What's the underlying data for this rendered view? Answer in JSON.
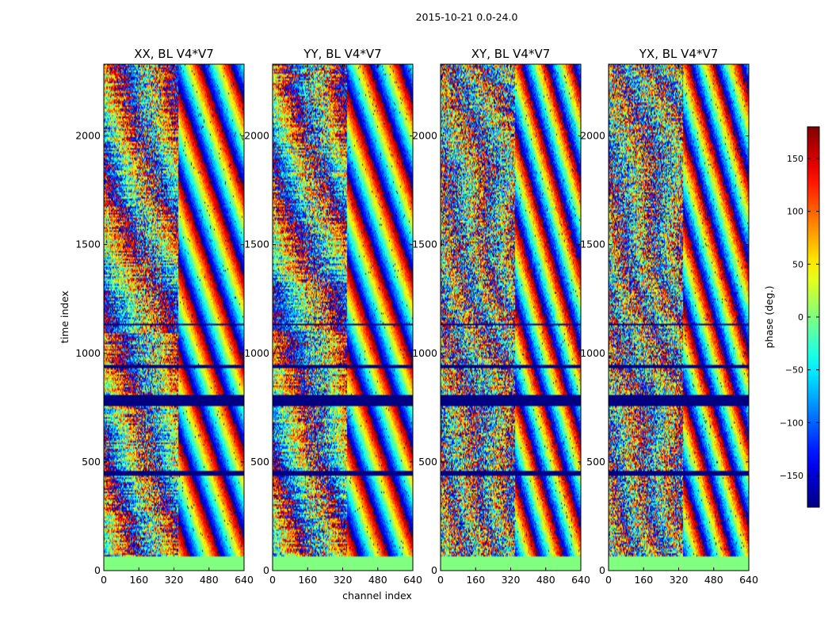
{
  "chart_data": {
    "type": "heatmap",
    "suptitle": "2015-10-21 0.0-24.0",
    "xlabel": "channel index",
    "ylabel": "time index",
    "x_range": [
      0,
      640
    ],
    "y_range": [
      0,
      2330
    ],
    "x_ticks": [
      0,
      160,
      320,
      480,
      640
    ],
    "y_ticks": [
      0,
      500,
      1000,
      1500,
      2000
    ],
    "panels": [
      {
        "title": "XX, BL V4*V7",
        "style": "parallel"
      },
      {
        "title": "YY, BL V4*V7",
        "style": "parallel"
      },
      {
        "title": "XY, BL V4*V7",
        "style": "noisy"
      },
      {
        "title": "YX, BL V4*V7",
        "style": "noisy"
      }
    ],
    "flagged_time_ranges": [
      [
        0,
        65
      ],
      [
        760,
        810
      ],
      [
        440,
        460
      ],
      [
        935,
        945
      ],
      [
        1125,
        1135
      ]
    ],
    "colorbar": {
      "label": "phase (deg.)",
      "colormap": "jet",
      "vmin": -180,
      "vmax": 180,
      "ticks": [
        -150,
        -100,
        -50,
        0,
        50,
        100,
        150
      ],
      "tick_labels": [
        "−150",
        "−100",
        "−50",
        "0",
        "50",
        "100",
        "150"
      ]
    },
    "flag_colors": {
      "bottom_band": "#7fff7f",
      "mid_band": "#00007f"
    }
  }
}
